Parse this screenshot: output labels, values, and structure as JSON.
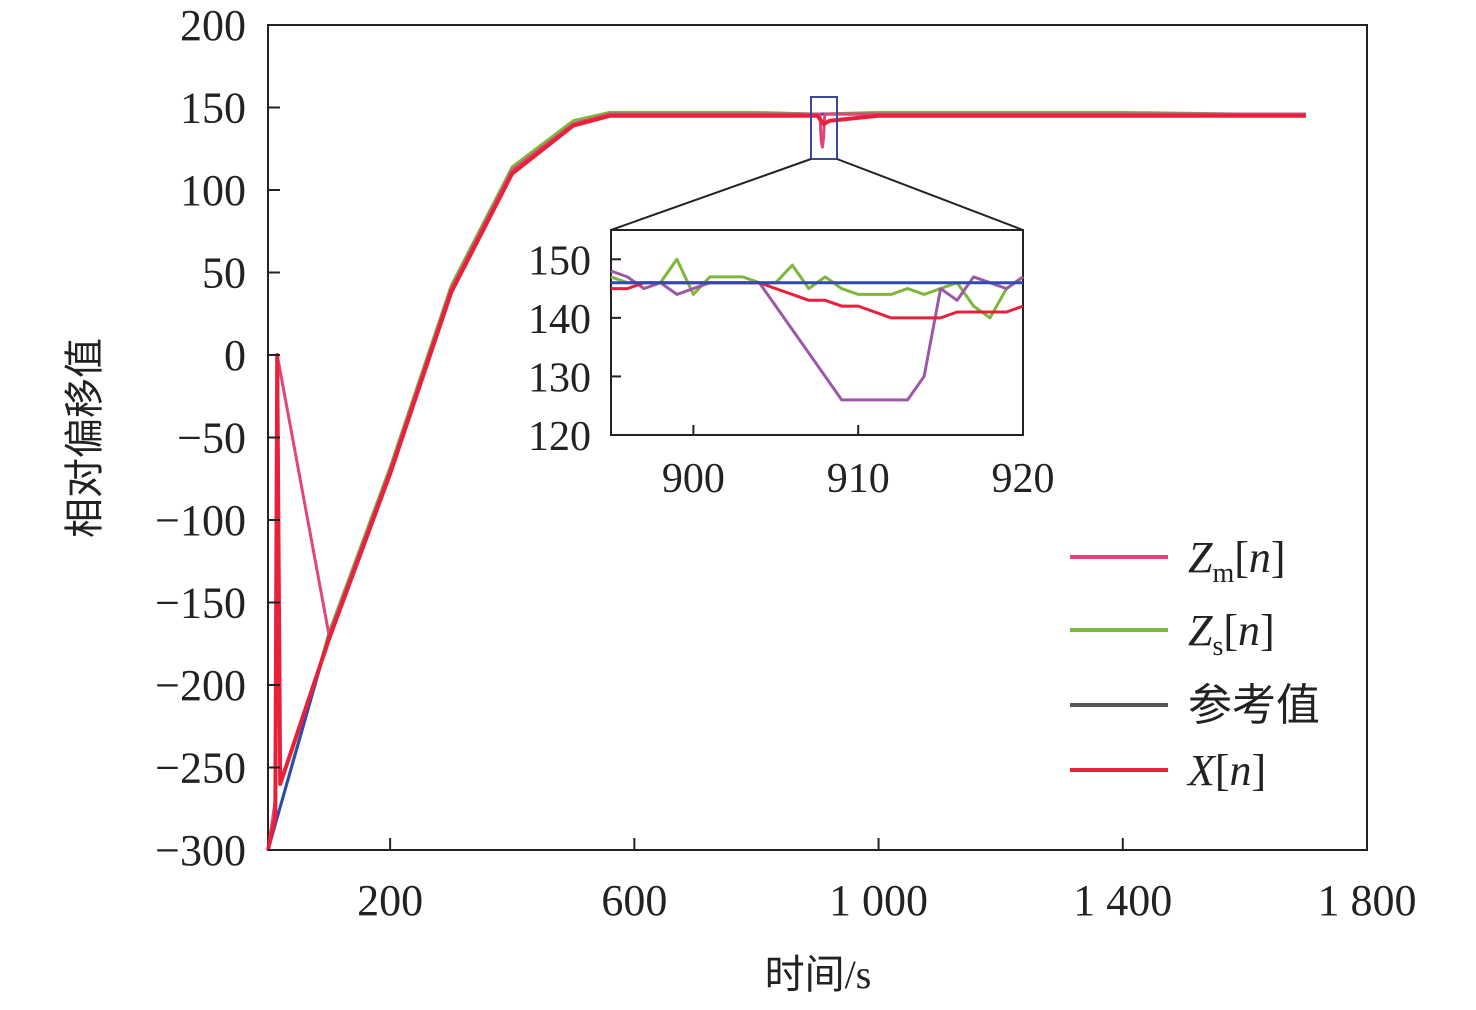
{
  "chart_data": {
    "type": "line",
    "xlabel": "时间/s",
    "ylabel": "相对偏移值",
    "xlim": [
      0,
      1800
    ],
    "ylim": [
      -300,
      200
    ],
    "x_ticks": [
      200,
      600,
      1000,
      1400,
      1800
    ],
    "x_tick_labels": [
      "200",
      "600",
      "1 000",
      "1 400",
      "1 800"
    ],
    "y_ticks": [
      200,
      150,
      100,
      50,
      0,
      -50,
      -100,
      -150,
      -200,
      -250,
      -300
    ],
    "y_tick_labels": [
      "200",
      "150",
      "100",
      "50",
      "0",
      "−50",
      "−100",
      "−150",
      "−200",
      "−250",
      "−300"
    ],
    "grid": false,
    "legend_position": "bottom-right",
    "series": [
      {
        "name": "Zm[n]",
        "base": "Z",
        "sub": "m",
        "bracket": "[n]",
        "color": "#e0457b",
        "x": [
          0,
          12,
          15,
          100,
          200,
          300,
          400,
          500,
          560,
          700,
          800,
          904,
          906,
          908,
          910,
          912,
          1000,
          1200,
          1400,
          1600,
          1700
        ],
        "y": [
          -300,
          -270,
          0,
          -170,
          -70,
          40,
          112,
          140,
          146,
          146,
          146,
          146,
          130,
          126,
          132,
          146,
          146,
          146,
          146,
          146,
          146
        ]
      },
      {
        "name": "Zs[n]",
        "base": "Z",
        "sub": "s",
        "bracket": "[n]",
        "color": "#7db83a",
        "x": [
          0,
          100,
          200,
          300,
          400,
          500,
          560,
          700,
          800,
          900,
          1000,
          1200,
          1400,
          1600,
          1700
        ],
        "y": [
          -300,
          -168,
          -68,
          42,
          114,
          142,
          147,
          147,
          147,
          146,
          147,
          147,
          147,
          146,
          146
        ]
      },
      {
        "name": "参考值",
        "color": "#2f4ab5",
        "legend_color": "#555555",
        "x": [
          0,
          100,
          200,
          300,
          400,
          500,
          560,
          700,
          1000,
          1400,
          1700
        ],
        "y": [
          -300,
          -170,
          -70,
          40,
          112,
          140,
          146,
          146,
          146,
          146,
          146
        ]
      },
      {
        "name": "X[n]",
        "base": "X",
        "bracket": "[n]",
        "color": "#e8203a",
        "x": [
          0,
          12,
          15,
          20,
          100,
          200,
          300,
          400,
          500,
          560,
          700,
          900,
          910,
          920,
          1000,
          1200,
          1400,
          1600,
          1700
        ],
        "y": [
          -300,
          -280,
          0,
          -260,
          -172,
          -72,
          38,
          110,
          139,
          145,
          145,
          145,
          140,
          142,
          145,
          145,
          145,
          145,
          145
        ]
      }
    ],
    "inset": {
      "xlim": [
        895,
        920
      ],
      "ylim": [
        120,
        155
      ],
      "x_ticks": [
        900,
        910,
        920
      ],
      "x_tick_labels": [
        "900",
        "910",
        "920"
      ],
      "y_ticks": [
        150,
        140,
        130,
        120
      ],
      "y_tick_labels": [
        "150",
        "140",
        "130",
        "120"
      ],
      "series": [
        {
          "name": "Zm[n]",
          "color": "#9b59a8",
          "x": [
            895,
            896,
            897,
            898,
            899,
            900,
            901,
            902,
            903,
            904,
            905,
            906,
            907,
            908,
            909,
            910,
            911,
            912,
            913,
            914,
            915,
            916,
            917,
            918,
            919,
            920
          ],
          "y": [
            148,
            147,
            145,
            146,
            144,
            145,
            146,
            146,
            146,
            146,
            142,
            138,
            134,
            130,
            126,
            126,
            126,
            126,
            126,
            130,
            145,
            143,
            147,
            146,
            145,
            147
          ]
        },
        {
          "name": "Zs[n]",
          "color": "#7db83a",
          "x": [
            895,
            896,
            897,
            898,
            899,
            900,
            901,
            902,
            903,
            904,
            905,
            906,
            907,
            908,
            909,
            910,
            911,
            912,
            913,
            914,
            915,
            916,
            917,
            918,
            919,
            920
          ],
          "y": [
            147,
            146,
            146,
            146,
            150,
            144,
            147,
            147,
            147,
            146,
            146,
            149,
            145,
            147,
            145,
            144,
            144,
            144,
            145,
            144,
            145,
            146,
            142,
            140,
            145,
            147
          ]
        },
        {
          "name": "参考值",
          "color": "#2f4ab5",
          "x": [
            895,
            920
          ],
          "y": [
            146,
            146
          ]
        },
        {
          "name": "X[n]",
          "color": "#e8203a",
          "x": [
            895,
            896,
            897,
            898,
            899,
            900,
            901,
            902,
            903,
            904,
            905,
            906,
            907,
            908,
            909,
            910,
            911,
            912,
            913,
            914,
            915,
            916,
            917,
            918,
            919,
            920
          ],
          "y": [
            145,
            145,
            146,
            146,
            146,
            146,
            146,
            146,
            146,
            146,
            145,
            144,
            143,
            143,
            142,
            142,
            141,
            140,
            140,
            140,
            140,
            141,
            141,
            141,
            141,
            142
          ]
        }
      ]
    }
  }
}
